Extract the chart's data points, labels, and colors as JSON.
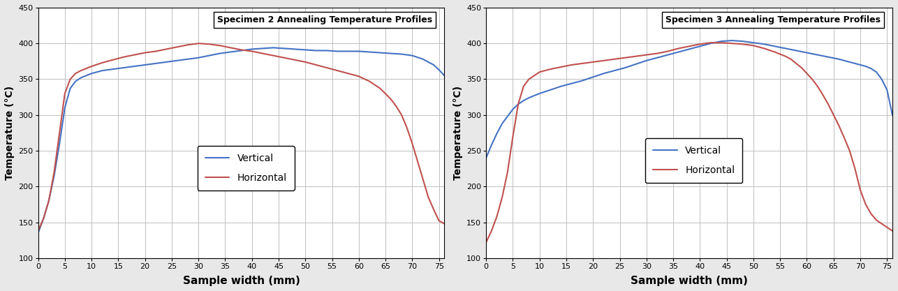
{
  "specimen2": {
    "title": "Specimen 2 Annealing Temperature Profiles",
    "vertical_x": [
      0,
      1,
      2,
      3,
      4,
      5,
      6,
      7,
      8,
      9,
      10,
      12,
      14,
      16,
      18,
      20,
      22,
      24,
      26,
      28,
      30,
      32,
      34,
      36,
      38,
      40,
      42,
      44,
      46,
      48,
      50,
      52,
      54,
      56,
      58,
      60,
      62,
      64,
      66,
      68,
      70,
      72,
      74,
      75,
      76
    ],
    "vertical_y": [
      135,
      155,
      180,
      215,
      260,
      310,
      337,
      347,
      352,
      355,
      358,
      362,
      364,
      366,
      368,
      370,
      372,
      374,
      376,
      378,
      380,
      383,
      386,
      388,
      390,
      392,
      393,
      394,
      393,
      392,
      391,
      390,
      390,
      389,
      389,
      389,
      388,
      387,
      386,
      385,
      383,
      378,
      370,
      363,
      355
    ],
    "horizontal_x": [
      0,
      1,
      2,
      3,
      4,
      5,
      6,
      7,
      8,
      9,
      10,
      12,
      14,
      16,
      18,
      20,
      22,
      24,
      26,
      28,
      30,
      32,
      34,
      36,
      38,
      40,
      42,
      44,
      46,
      48,
      50,
      52,
      54,
      56,
      58,
      60,
      62,
      64,
      66,
      67,
      68,
      69,
      70,
      71,
      72,
      73,
      74,
      75,
      76
    ],
    "horizontal_y": [
      138,
      155,
      180,
      220,
      275,
      330,
      350,
      358,
      362,
      365,
      368,
      373,
      377,
      381,
      384,
      387,
      389,
      392,
      395,
      398,
      400,
      399,
      397,
      394,
      391,
      389,
      386,
      383,
      380,
      377,
      374,
      370,
      366,
      362,
      358,
      354,
      347,
      337,
      322,
      312,
      300,
      282,
      260,
      235,
      210,
      185,
      168,
      152,
      148
    ]
  },
  "specimen3": {
    "title": "Specimen 3 Annealing Temperature Profiles",
    "vertical_x": [
      0,
      1,
      2,
      3,
      4,
      5,
      6,
      7,
      8,
      9,
      10,
      12,
      14,
      16,
      18,
      20,
      22,
      24,
      26,
      28,
      30,
      32,
      34,
      36,
      38,
      40,
      42,
      44,
      46,
      48,
      50,
      52,
      54,
      56,
      58,
      60,
      62,
      64,
      66,
      68,
      70,
      71,
      72,
      73,
      74,
      75,
      76
    ],
    "vertical_y": [
      240,
      258,
      274,
      288,
      298,
      308,
      315,
      320,
      324,
      327,
      330,
      335,
      340,
      344,
      348,
      353,
      358,
      362,
      366,
      371,
      376,
      380,
      384,
      388,
      392,
      396,
      400,
      403,
      404,
      403,
      401,
      399,
      396,
      393,
      390,
      387,
      384,
      381,
      378,
      374,
      370,
      368,
      365,
      360,
      350,
      335,
      300
    ],
    "horizontal_x": [
      0,
      1,
      2,
      3,
      4,
      5,
      6,
      7,
      8,
      9,
      10,
      12,
      14,
      16,
      18,
      20,
      22,
      24,
      26,
      28,
      30,
      32,
      34,
      36,
      38,
      40,
      42,
      44,
      46,
      48,
      50,
      52,
      54,
      56,
      57,
      58,
      59,
      60,
      61,
      62,
      63,
      64,
      65,
      66,
      67,
      68,
      69,
      70,
      71,
      72,
      73,
      74,
      75,
      76
    ],
    "horizontal_y": [
      122,
      138,
      158,
      185,
      220,
      270,
      315,
      340,
      350,
      355,
      360,
      364,
      367,
      370,
      372,
      374,
      376,
      378,
      380,
      382,
      384,
      386,
      389,
      393,
      396,
      399,
      401,
      401,
      400,
      399,
      397,
      393,
      388,
      382,
      378,
      372,
      366,
      358,
      350,
      340,
      328,
      315,
      300,
      285,
      268,
      250,
      225,
      195,
      175,
      162,
      153,
      148,
      143,
      138
    ]
  },
  "vertical_color": "#4472C4",
  "horizontal_color": "#C0504D",
  "ylabel": "Temperature (°C)",
  "xlabel": "Sample width (mm)",
  "ylim": [
    100,
    450
  ],
  "xlim": [
    0,
    76
  ],
  "yticks": [
    100,
    150,
    200,
    250,
    300,
    350,
    400,
    450
  ],
  "xticks": [
    0,
    5,
    10,
    15,
    20,
    25,
    30,
    35,
    40,
    45,
    50,
    55,
    60,
    65,
    70,
    75
  ],
  "grid_color": "#C0C0C0",
  "background_color": "#E8E8E8",
  "plot_bg_color": "#FFFFFF",
  "legend_vertical": "Vertical",
  "legend_horizontal": "Horizontal",
  "line_width": 1.5
}
